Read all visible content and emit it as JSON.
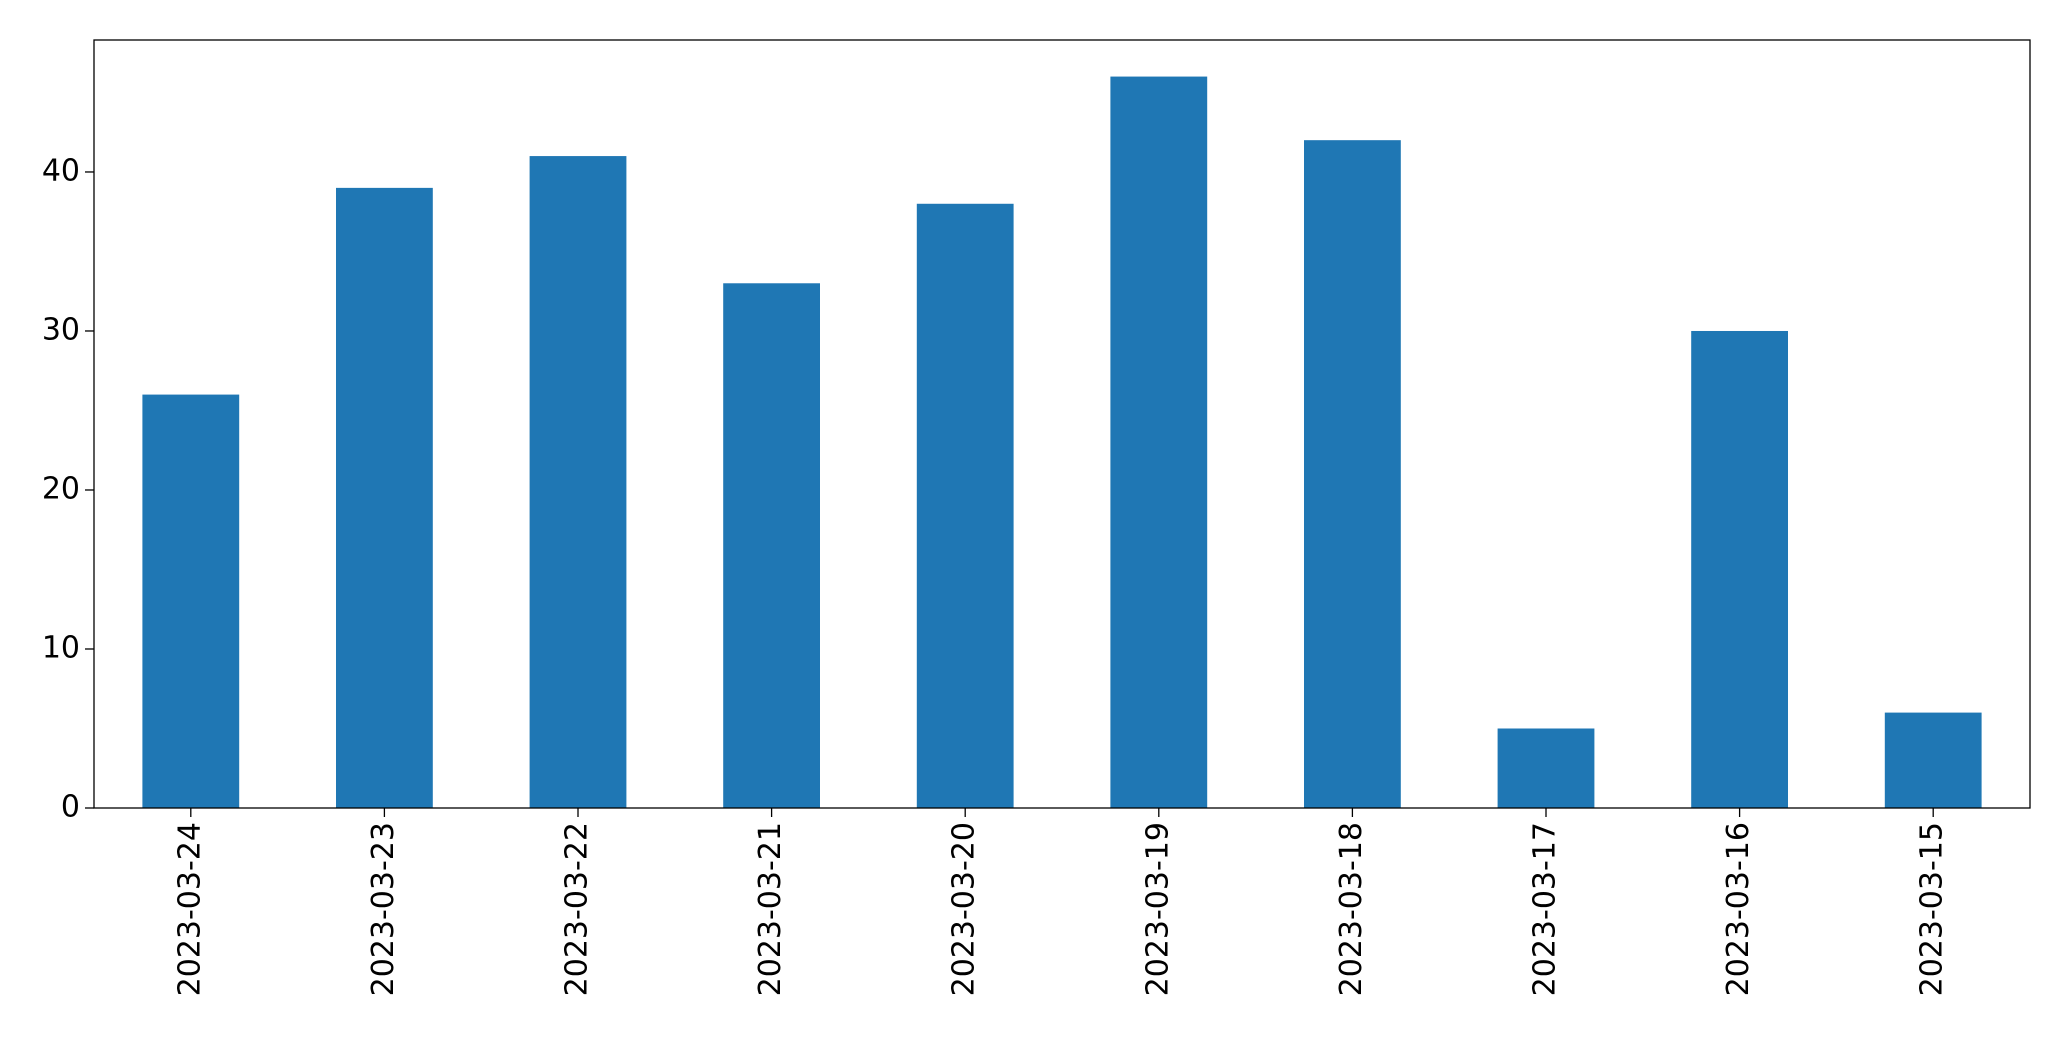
{
  "chart_data": {
    "type": "bar",
    "categories": [
      "2023-03-24",
      "2023-03-23",
      "2023-03-22",
      "2023-03-21",
      "2023-03-20",
      "2023-03-19",
      "2023-03-18",
      "2023-03-17",
      "2023-03-16",
      "2023-03-15"
    ],
    "values": [
      26,
      39,
      41,
      33,
      38,
      46,
      42,
      5,
      30,
      6
    ],
    "color": "#1f77b4",
    "ylim": [
      0,
      48.3
    ],
    "yticks": [
      0,
      10,
      20,
      30,
      40
    ],
    "grid": false
  }
}
